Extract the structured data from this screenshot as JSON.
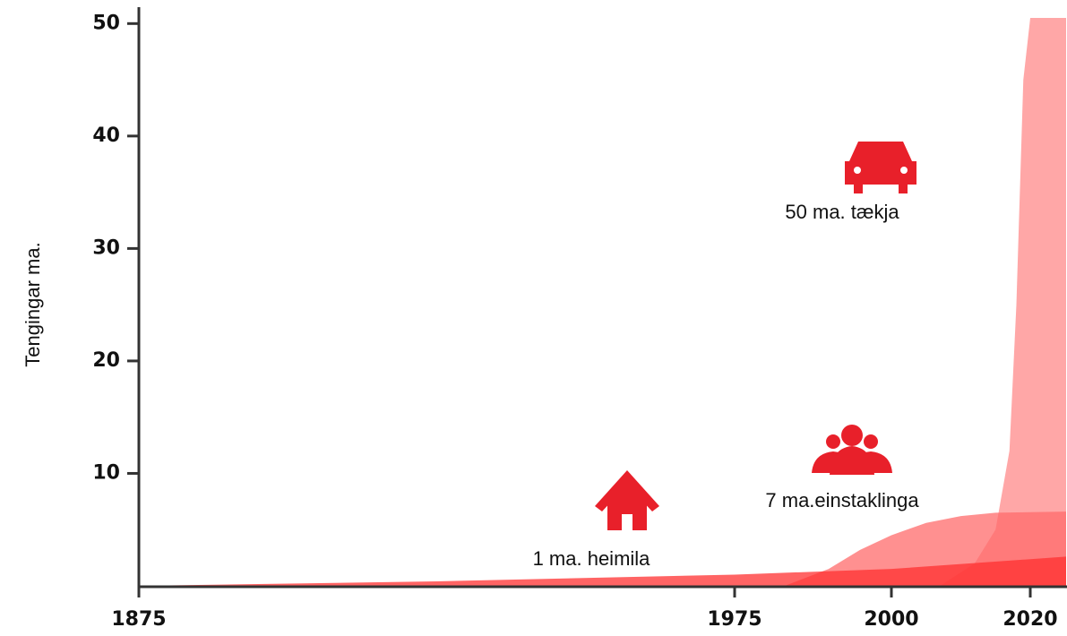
{
  "chart_data": {
    "type": "area",
    "y_label": "Tengingar ma.",
    "ylim": [
      0,
      51.3
    ],
    "yticks": [
      10,
      20,
      30,
      40,
      50
    ],
    "xlim": [
      1875,
      2025
    ],
    "xticks": [
      1875,
      1975,
      2000,
      2020
    ],
    "series": [
      {
        "name": "50 ma. tækja",
        "color": "#ff8a8a",
        "x": [
          2007,
          2012,
          2015,
          2017,
          2018,
          2019,
          2020,
          2025
        ],
        "values": [
          0,
          2,
          5,
          12,
          25,
          45,
          50.5,
          50.5
        ]
      },
      {
        "name": "7 ma.einstaklinga",
        "color": "#ff6b6b",
        "x": [
          1983,
          1990,
          1995,
          2000,
          2005,
          2010,
          2015,
          2025
        ],
        "values": [
          0,
          1.5,
          3.2,
          4.5,
          5.6,
          6.2,
          6.5,
          6.6
        ]
      },
      {
        "name": "1 ma. heimila",
        "color": "#ff3030",
        "x": [
          1875,
          1925,
          1975,
          2000,
          2025
        ],
        "values": [
          0,
          0.4,
          1.0,
          1.5,
          2.6
        ]
      }
    ]
  }
}
